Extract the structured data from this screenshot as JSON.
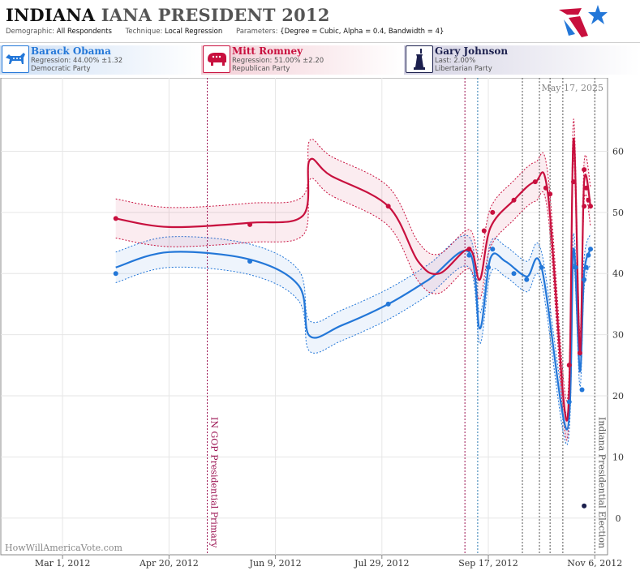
{
  "header": {
    "title_state": "INDIANA",
    "title_rest": "IANA PRESIDENT 2012",
    "demographic_label": "Demographic:",
    "demographic_value": "All Respondents",
    "technique_label": "Technique:",
    "technique_value": "Local Regression",
    "parameters_label": "Parameters:",
    "parameters_value": "{Degree = Cubic, Alpha = 0.4, Bandwidth = 4}"
  },
  "candidates": [
    {
      "name": "Barack Obama",
      "stat": "Regression: 44.00% ±1.32",
      "party": "Democratic Party",
      "color": "#2377d8"
    },
    {
      "name": "Mitt Romney",
      "stat": "Regression: 51.00% ±2.20",
      "party": "Republican Party",
      "color": "#c8103e"
    },
    {
      "name": "Gary Johnson",
      "stat": "Last: 2.00%",
      "party": "Libertarian Party",
      "color": "#1b1f4d"
    }
  ],
  "chart_data": {
    "type": "line",
    "date_stamp": "May 17, 2025",
    "watermark": "HowWillAmericaVote.com",
    "x_ticks": [
      "Mar 1, 2012",
      "Apr 20, 2012",
      "Jun 9, 2012",
      "Jul 29, 2012",
      "Sep 17, 2012",
      "Nov 6, 2012"
    ],
    "x_range": [
      "2012-02-01",
      "2012-11-12"
    ],
    "y_ticks": [
      0,
      10,
      20,
      30,
      40,
      50,
      60
    ],
    "ylim": [
      -6,
      72
    ],
    "grid": true,
    "events": [
      {
        "date": "2012-05-08",
        "label": "IN GOP Presidential Primary",
        "color": "#9a1050",
        "style": "dashed"
      },
      {
        "date": "2012-11-06",
        "label": "Indiana Presidential Election",
        "color": "#555555",
        "style": "dashed"
      }
    ],
    "poll_markers": [
      "2012-09-06",
      "2012-09-12",
      "2012-10-03",
      "2012-10-11",
      "2012-10-16",
      "2012-10-22"
    ],
    "poll_marker_colors": [
      "#9a1050",
      "#2a7ab0",
      "#555555",
      "#555555",
      "#555555",
      "#555555"
    ],
    "series": [
      {
        "name": "Barack Obama",
        "color": "#2377d8",
        "band_color": "#2377d8",
        "points": [
          {
            "date": "2012-03-26",
            "value": 40
          },
          {
            "date": "2012-05-28",
            "value": 42
          },
          {
            "date": "2012-08-01",
            "value": 35
          },
          {
            "date": "2012-09-08",
            "value": 43
          },
          {
            "date": "2012-09-17",
            "value": 41
          },
          {
            "date": "2012-09-19",
            "value": 44
          },
          {
            "date": "2012-09-29",
            "value": 40
          },
          {
            "date": "2012-10-05",
            "value": 39
          },
          {
            "date": "2012-10-12",
            "value": 41
          },
          {
            "date": "2012-10-25",
            "value": 19
          },
          {
            "date": "2012-10-28",
            "value": 41
          },
          {
            "date": "2012-10-31",
            "value": 21
          },
          {
            "date": "2012-11-01",
            "value": 39
          },
          {
            "date": "2012-11-02",
            "value": 41
          },
          {
            "date": "2012-11-03",
            "value": 43
          },
          {
            "date": "2012-11-04",
            "value": 44
          }
        ],
        "fit": [
          {
            "date": "2012-03-26",
            "value": 41
          },
          {
            "date": "2012-04-20",
            "value": 43.5
          },
          {
            "date": "2012-05-28",
            "value": 42.3
          },
          {
            "date": "2012-06-20",
            "value": 38
          },
          {
            "date": "2012-06-25",
            "value": 29.8
          },
          {
            "date": "2012-07-10",
            "value": 31.5
          },
          {
            "date": "2012-08-01",
            "value": 35
          },
          {
            "date": "2012-08-20",
            "value": 39
          },
          {
            "date": "2012-09-08",
            "value": 43.5
          },
          {
            "date": "2012-09-13",
            "value": 31
          },
          {
            "date": "2012-09-18",
            "value": 42.5
          },
          {
            "date": "2012-09-25",
            "value": 42
          },
          {
            "date": "2012-10-05",
            "value": 39.5
          },
          {
            "date": "2012-10-12",
            "value": 41
          },
          {
            "date": "2012-10-24",
            "value": 14.5
          },
          {
            "date": "2012-10-27",
            "value": 44
          },
          {
            "date": "2012-10-30",
            "value": 24
          },
          {
            "date": "2012-11-01",
            "value": 40
          },
          {
            "date": "2012-11-04",
            "value": 44
          }
        ],
        "band_halfwidth": 2.5
      },
      {
        "name": "Mitt Romney",
        "color": "#c8103e",
        "band_color": "#c8103e",
        "points": [
          {
            "date": "2012-03-26",
            "value": 49
          },
          {
            "date": "2012-05-28",
            "value": 48
          },
          {
            "date": "2012-08-01",
            "value": 51
          },
          {
            "date": "2012-09-08",
            "value": 44
          },
          {
            "date": "2012-09-15",
            "value": 47
          },
          {
            "date": "2012-09-19",
            "value": 50
          },
          {
            "date": "2012-09-29",
            "value": 52
          },
          {
            "date": "2012-10-09",
            "value": 55
          },
          {
            "date": "2012-10-14",
            "value": 54
          },
          {
            "date": "2012-10-16",
            "value": 53
          },
          {
            "date": "2012-10-25",
            "value": 25
          },
          {
            "date": "2012-10-27",
            "value": 55
          },
          {
            "date": "2012-10-30",
            "value": 27
          },
          {
            "date": "2012-11-01",
            "value": 57
          },
          {
            "date": "2012-11-01",
            "value": 51
          },
          {
            "date": "2012-11-02",
            "value": 54
          },
          {
            "date": "2012-11-03",
            "value": 52
          },
          {
            "date": "2012-11-04",
            "value": 51
          }
        ],
        "fit": [
          {
            "date": "2012-03-26",
            "value": 49
          },
          {
            "date": "2012-04-20",
            "value": 47.6
          },
          {
            "date": "2012-05-28",
            "value": 48.3
          },
          {
            "date": "2012-06-22",
            "value": 49.5
          },
          {
            "date": "2012-06-25",
            "value": 58.5
          },
          {
            "date": "2012-07-05",
            "value": 56
          },
          {
            "date": "2012-08-01",
            "value": 51
          },
          {
            "date": "2012-08-15",
            "value": 42
          },
          {
            "date": "2012-08-25",
            "value": 40
          },
          {
            "date": "2012-09-08",
            "value": 44
          },
          {
            "date": "2012-09-13",
            "value": 39
          },
          {
            "date": "2012-09-18",
            "value": 47.5
          },
          {
            "date": "2012-09-29",
            "value": 52
          },
          {
            "date": "2012-10-09",
            "value": 55
          },
          {
            "date": "2012-10-15",
            "value": 53
          },
          {
            "date": "2012-10-24",
            "value": 16
          },
          {
            "date": "2012-10-27",
            "value": 62
          },
          {
            "date": "2012-10-30",
            "value": 27
          },
          {
            "date": "2012-11-01",
            "value": 55
          },
          {
            "date": "2012-11-04",
            "value": 51
          }
        ],
        "band_halfwidth": 3.2
      },
      {
        "name": "Gary Johnson",
        "color": "#1b1f4d",
        "points": [
          {
            "date": "2012-11-01",
            "value": 2
          }
        ]
      }
    ]
  }
}
